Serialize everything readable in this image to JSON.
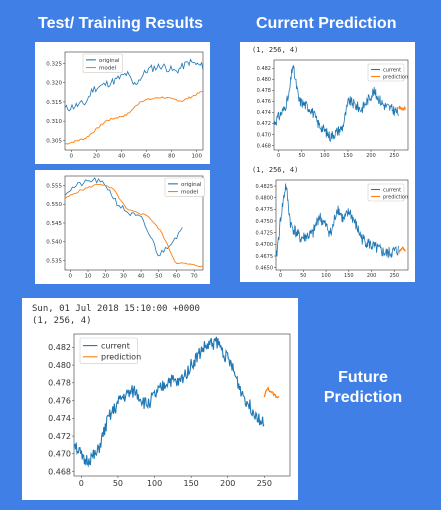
{
  "headings": {
    "training": "Test/ Training Results",
    "current": "Current Prediction",
    "future_line1": "Future",
    "future_line2": "Prediction"
  },
  "panels": {
    "current_top": {
      "header": "(1, 256, 4)"
    },
    "current_bottom": {
      "header": "(1, 256, 4)"
    },
    "future": {
      "header_line1": "Sun, 01 Jul 2018 15:10:00 +0000",
      "header_line2": "(1, 256, 4)"
    }
  },
  "colors": {
    "background": "#3f7fe6",
    "series_blue": "#1f77b4",
    "series_orange": "#ff7f0e"
  },
  "chart_data": [
    {
      "id": "training1",
      "type": "line",
      "series": [
        {
          "name": "original"
        },
        {
          "name": "model"
        }
      ],
      "xticks": [
        0,
        20,
        40,
        60,
        80,
        100
      ],
      "xlim": [
        -5,
        105
      ],
      "yticks": [
        0.305,
        0.31,
        0.315,
        0.32,
        0.325
      ],
      "ylim": [
        0.3025,
        0.328
      ]
    },
    {
      "id": "training2",
      "type": "line",
      "series": [
        {
          "name": "original"
        },
        {
          "name": "model"
        }
      ],
      "xticks": [
        0,
        10,
        20,
        30,
        40,
        50,
        60,
        70
      ],
      "xlim": [
        -3,
        75
      ],
      "yticks": [
        0.535,
        0.54,
        0.545,
        0.55,
        0.555
      ],
      "ylim": [
        0.5325,
        0.5575
      ]
    },
    {
      "id": "current1",
      "type": "line",
      "series": [
        {
          "name": "current"
        },
        {
          "name": "prediction"
        }
      ],
      "xticks": [
        0,
        50,
        100,
        150,
        200,
        250
      ],
      "xlim": [
        -10,
        280
      ],
      "yticks": [
        0.468,
        0.47,
        0.472,
        0.474,
        0.476,
        0.478,
        0.48,
        0.482
      ],
      "ylim": [
        0.4672,
        0.4835
      ]
    },
    {
      "id": "current2",
      "type": "line",
      "series": [
        {
          "name": "current"
        },
        {
          "name": "prediction"
        }
      ],
      "xticks": [
        0,
        50,
        100,
        150,
        200,
        250
      ],
      "xlim": [
        -10,
        280
      ],
      "yticks": [
        0.465,
        0.4675,
        0.47,
        0.4725,
        0.475,
        0.4775,
        0.48,
        0.4825
      ],
      "ytick_labels": [
        "0.4650",
        "0.4675",
        "0.4700",
        "0.4725",
        "0.4750",
        "0.4775",
        "0.4800",
        "0.4825"
      ],
      "ylim": [
        0.4645,
        0.4838
      ]
    },
    {
      "id": "future",
      "type": "line",
      "series": [
        {
          "name": "current"
        },
        {
          "name": "prediction"
        }
      ],
      "xticks": [
        0,
        50,
        100,
        150,
        200,
        250
      ],
      "xlim": [
        -10,
        285
      ],
      "yticks": [
        0.468,
        0.47,
        0.472,
        0.474,
        0.476,
        0.478,
        0.48,
        0.482
      ],
      "ylim": [
        0.4675,
        0.4835
      ]
    }
  ]
}
